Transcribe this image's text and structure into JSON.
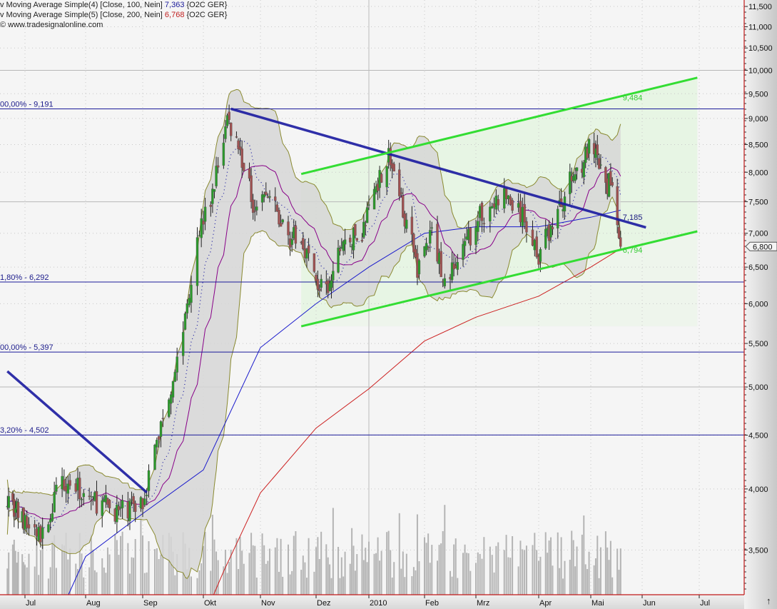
{
  "legend": {
    "line1_prefix": "v Moving Average Simple(4) [Close, 100, Nein] ",
    "line1_value": "7,363",
    "line1_suffix": " {O2C GER}",
    "line2_prefix": "v Moving Average Simple(5) [Close, 200, Nein] ",
    "line2_value": "6,768",
    "line2_suffix": " {O2C GER}",
    "line3": "© www.tradesignalonline.com"
  },
  "colors": {
    "ma100": "#1a1acc",
    "ma200": "#cc2020",
    "trendline": "#1a1aa0",
    "channel": "#33dd33",
    "up_candle": "#2a9a2a",
    "down_candle": "#a05050",
    "band_fill": "#d6d6d6",
    "band_line": "#8a8a30",
    "volume": "#b4b4b4"
  },
  "chart_data": {
    "type": "candlestick",
    "y_scale": "log",
    "ylim": [
      3200,
      11700
    ],
    "grid": true,
    "y_ticks": [
      "11,500",
      "11,000",
      "10,500",
      "10,000",
      "9,500",
      "9,000",
      "8,500",
      "8,000",
      "7,500",
      "7,000",
      "6,500",
      "6,000",
      "5,500",
      "5,000",
      "4,500",
      "4,000",
      "3,500"
    ],
    "y_tick_values": [
      11500,
      11000,
      10500,
      10000,
      9500,
      9000,
      8500,
      8000,
      7500,
      7000,
      6500,
      6000,
      5500,
      5000,
      4500,
      4000,
      3500
    ],
    "x_ticks": [
      {
        "label": "Jul",
        "date": "2009-07-01"
      },
      {
        "label": "Aug",
        "date": "2009-08-01"
      },
      {
        "label": "Sep",
        "date": "2009-09-01"
      },
      {
        "label": "Okt",
        "date": "2009-10-01"
      },
      {
        "label": "Nov",
        "date": "2009-11-01"
      },
      {
        "label": "Dez",
        "date": "2009-12-01"
      },
      {
        "label": "2010",
        "date": "2010-01-01"
      },
      {
        "label": "Feb",
        "date": "2010-02-01"
      },
      {
        "label": "Mrz",
        "date": "2010-03-01"
      },
      {
        "label": "Apr",
        "date": "2010-04-01"
      },
      {
        "label": "Mai",
        "date": "2010-05-01"
      },
      {
        "label": "Jun",
        "date": "2010-06-01"
      },
      {
        "label": "Jul",
        "date": "2010-07-01"
      }
    ],
    "close_path": [
      [
        "2009-06-18",
        3950
      ],
      [
        "2009-07-01",
        3700
      ],
      [
        "2009-07-10",
        3600
      ],
      [
        "2009-07-20",
        4100
      ],
      [
        "2009-08-05",
        3900
      ],
      [
        "2009-08-20",
        3800
      ],
      [
        "2009-09-01",
        3900
      ],
      [
        "2009-09-10",
        4600
      ],
      [
        "2009-09-20",
        5500
      ],
      [
        "2009-09-28",
        7000
      ],
      [
        "2009-10-05",
        7500
      ],
      [
        "2009-10-14",
        9000
      ],
      [
        "2009-10-20",
        8500
      ],
      [
        "2009-10-28",
        7500
      ],
      [
        "2009-11-05",
        7600
      ],
      [
        "2009-11-15",
        7000
      ],
      [
        "2009-11-25",
        6800
      ],
      [
        "2009-12-01",
        6300
      ],
      [
        "2009-12-08",
        6100
      ],
      [
        "2009-12-15",
        6800
      ],
      [
        "2009-12-28",
        7000
      ],
      [
        "2010-01-05",
        7800
      ],
      [
        "2010-01-12",
        8300
      ],
      [
        "2010-01-20",
        7400
      ],
      [
        "2010-01-28",
        6500
      ],
      [
        "2010-02-05",
        7000
      ],
      [
        "2010-02-12",
        6300
      ],
      [
        "2010-02-22",
        6700
      ],
      [
        "2010-03-01",
        7200
      ],
      [
        "2010-03-15",
        7600
      ],
      [
        "2010-03-25",
        7200
      ],
      [
        "2010-04-01",
        6700
      ],
      [
        "2010-04-10",
        7200
      ],
      [
        "2010-04-20",
        7900
      ],
      [
        "2010-04-30",
        8400
      ],
      [
        "2010-05-05",
        8200
      ],
      [
        "2010-05-10",
        7700
      ],
      [
        "2010-05-14",
        7900
      ],
      [
        "2010-05-19",
        6800
      ]
    ],
    "ma100": {
      "name": "Moving Average Simple(4) [Close, 100, Nein]",
      "last": 7363,
      "values": [
        [
          "2009-07-10",
          2800
        ],
        [
          "2009-08-01",
          3450
        ],
        [
          "2009-09-01",
          3790
        ],
        [
          "2009-10-01",
          4170
        ],
        [
          "2009-11-01",
          5450
        ],
        [
          "2009-12-01",
          6000
        ],
        [
          "2010-01-01",
          6500
        ],
        [
          "2010-02-01",
          7000
        ],
        [
          "2010-03-01",
          7100
        ],
        [
          "2010-04-01",
          7100
        ],
        [
          "2010-05-01",
          7250
        ],
        [
          "2010-05-19",
          7363
        ]
      ]
    },
    "ma200": {
      "name": "Moving Average Simple(5) [Close, 200, Nein]",
      "last": 6768,
      "values": [
        [
          "2009-09-24",
          2800
        ],
        [
          "2009-10-12",
          3340
        ],
        [
          "2009-11-01",
          3966
        ],
        [
          "2009-12-01",
          4570
        ],
        [
          "2010-01-01",
          4980
        ],
        [
          "2010-02-01",
          5530
        ],
        [
          "2010-03-01",
          5825
        ],
        [
          "2010-04-01",
          6100
        ],
        [
          "2010-05-01",
          6500
        ],
        [
          "2010-05-19",
          6768
        ]
      ]
    },
    "fibonacci": [
      {
        "label": "00,00% - 9,191",
        "price": 9191
      },
      {
        "label": "1,80% - 6,292",
        "price": 6292
      },
      {
        "label": "00,00% - 5,397",
        "price": 5397
      },
      {
        "label": "3,20% - 4,502",
        "price": 4502
      }
    ],
    "trendlines": [
      {
        "kind": "resistance",
        "from": [
          "2009-10-16",
          9191
        ],
        "to": [
          "2010-06-03",
          7090
        ]
      },
      {
        "kind": "resistance",
        "from": [
          "2009-06-18",
          5175
        ],
        "to": [
          "2009-09-03",
          3970
        ]
      },
      {
        "kind": "channel-upper",
        "from": [
          "2009-11-23",
          7970
        ],
        "to": [
          "2010-06-30",
          9840
        ]
      },
      {
        "kind": "channel-lower",
        "from": [
          "2009-11-23",
          5710
        ],
        "to": [
          "2010-06-30",
          7030
        ]
      }
    ],
    "annotations": [
      {
        "text": "9,484",
        "date": "2010-05-19",
        "price": 9484,
        "color": "#33cc33"
      },
      {
        "text": "7,185",
        "date": "2010-05-19",
        "price": 7185,
        "color": "#1a1a80"
      },
      {
        "text": "6,794",
        "date": "2010-05-19",
        "price": 6794,
        "color": "#33cc33"
      }
    ],
    "last_price_tag": "6,800",
    "last_price": 6800
  }
}
